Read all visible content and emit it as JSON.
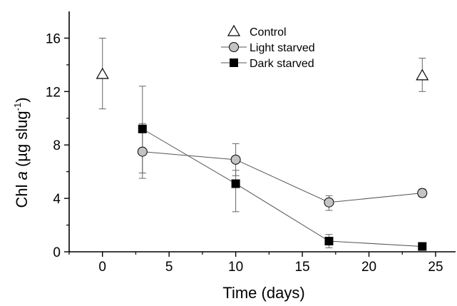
{
  "chart_data": {
    "type": "scatter",
    "xlabel": "Time (days)",
    "ylabel": {
      "pre": "Chl ",
      "italic": "a",
      "post": " (µg slug",
      "sup": "-1",
      "close": ")"
    },
    "xlim": [
      -2.5,
      26.5
    ],
    "ylim": [
      0,
      18
    ],
    "xticks": [
      0,
      5,
      10,
      15,
      20,
      25
    ],
    "yticks": [
      0,
      4,
      8,
      12,
      16
    ],
    "grid": false,
    "legend_position": "top",
    "series": [
      {
        "name": "Control",
        "marker": "open-triangle",
        "color": "#000000",
        "connected": false,
        "points": [
          {
            "x": 0,
            "y": 13.3,
            "err_low": 10.7,
            "err_high": 16.0
          },
          {
            "x": 24,
            "y": 13.2,
            "err_low": 12.0,
            "err_high": 14.5
          }
        ]
      },
      {
        "name": "Light starved",
        "marker": "gray-circle",
        "color": "#c0c0c0",
        "connected": true,
        "points": [
          {
            "x": 3,
            "y": 7.5,
            "err_low": 5.9,
            "err_high": 9.6
          },
          {
            "x": 10,
            "y": 6.9,
            "err_low": 5.7,
            "err_high": 8.1
          },
          {
            "x": 17,
            "y": 3.7,
            "err_low": 3.1,
            "err_high": 4.2
          },
          {
            "x": 24,
            "y": 4.4,
            "err_low": 4.1,
            "err_high": 4.7
          }
        ]
      },
      {
        "name": "Dark starved",
        "marker": "filled-square",
        "color": "#000000",
        "connected": true,
        "points": [
          {
            "x": 3,
            "y": 9.2,
            "err_low": 5.5,
            "err_high": 12.4
          },
          {
            "x": 10,
            "y": 5.1,
            "err_low": 3.0,
            "err_high": 6.1
          },
          {
            "x": 17,
            "y": 0.8,
            "err_low": 0.3,
            "err_high": 1.3
          },
          {
            "x": 24,
            "y": 0.4,
            "err_low": 0.4,
            "err_high": 0.4
          }
        ]
      }
    ]
  }
}
